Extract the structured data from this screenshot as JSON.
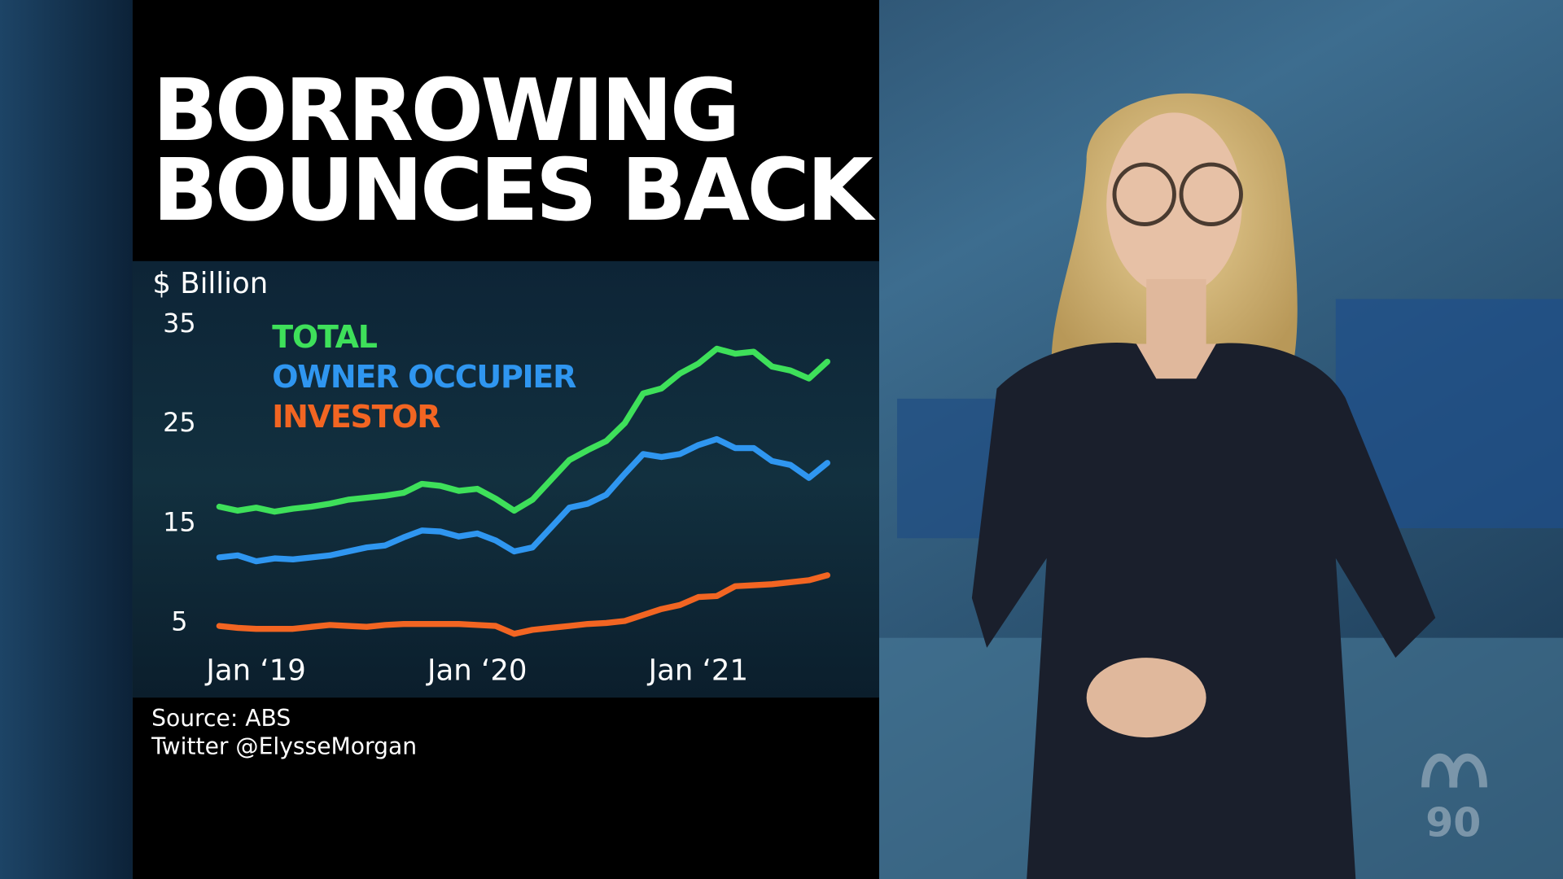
{
  "chart_data": {
    "type": "line",
    "title": [
      "BORROWING",
      "BOUNCES BACK"
    ],
    "ylabel": "$ Billion",
    "categories": [
      null,
      null,
      "Jan ‘19",
      null,
      null,
      null,
      null,
      null,
      null,
      null,
      null,
      null,
      null,
      null,
      "Jan ‘20",
      null,
      null,
      null,
      null,
      null,
      null,
      null,
      null,
      null,
      null,
      null,
      "Jan ‘21",
      null,
      null,
      null,
      null,
      null,
      null,
      null
    ],
    "series": [
      {
        "name": "TOTAL",
        "color": "#3ee05a",
        "values": [
          16.7,
          16.3,
          16.6,
          16.2,
          16.5,
          16.7,
          17.0,
          17.4,
          17.6,
          17.8,
          18.1,
          19.0,
          18.8,
          18.3,
          18.5,
          17.5,
          16.3,
          17.4,
          19.4,
          21.4,
          22.4,
          23.3,
          25.1,
          28.1,
          28.6,
          30.1,
          31.1,
          32.6,
          32.1,
          32.3,
          30.8,
          30.4,
          29.6,
          31.3
        ]
      },
      {
        "name": "OWNER OCCUPIER",
        "color": "#2f96f0",
        "values": [
          11.6,
          11.8,
          11.2,
          11.5,
          11.4,
          11.6,
          11.8,
          12.2,
          12.6,
          12.8,
          13.6,
          14.3,
          14.2,
          13.7,
          14.0,
          13.3,
          12.2,
          12.6,
          14.6,
          16.6,
          17.0,
          17.9,
          20.0,
          22.0,
          21.7,
          22.0,
          22.9,
          23.5,
          22.6,
          22.6,
          21.3,
          20.9,
          19.6,
          21.1
        ]
      },
      {
        "name": "INVESTOR",
        "color": "#f26522",
        "values": [
          4.7,
          4.5,
          4.4,
          4.4,
          4.4,
          4.6,
          4.8,
          4.7,
          4.6,
          4.8,
          4.9,
          4.9,
          4.9,
          4.9,
          4.8,
          4.7,
          3.9,
          4.3,
          4.5,
          4.7,
          4.9,
          5.0,
          5.2,
          5.8,
          6.4,
          6.8,
          7.6,
          7.7,
          8.7,
          8.8,
          8.9,
          9.1,
          9.3,
          9.8
        ]
      }
    ],
    "ylim": [
      3,
      36
    ],
    "yticks": [
      5,
      15,
      25,
      35
    ],
    "grid": false,
    "legend": "upper left"
  },
  "footer": {
    "source": "Source: ABS",
    "credit": "Twitter @ElysseMorgan"
  },
  "logo_text": "90"
}
